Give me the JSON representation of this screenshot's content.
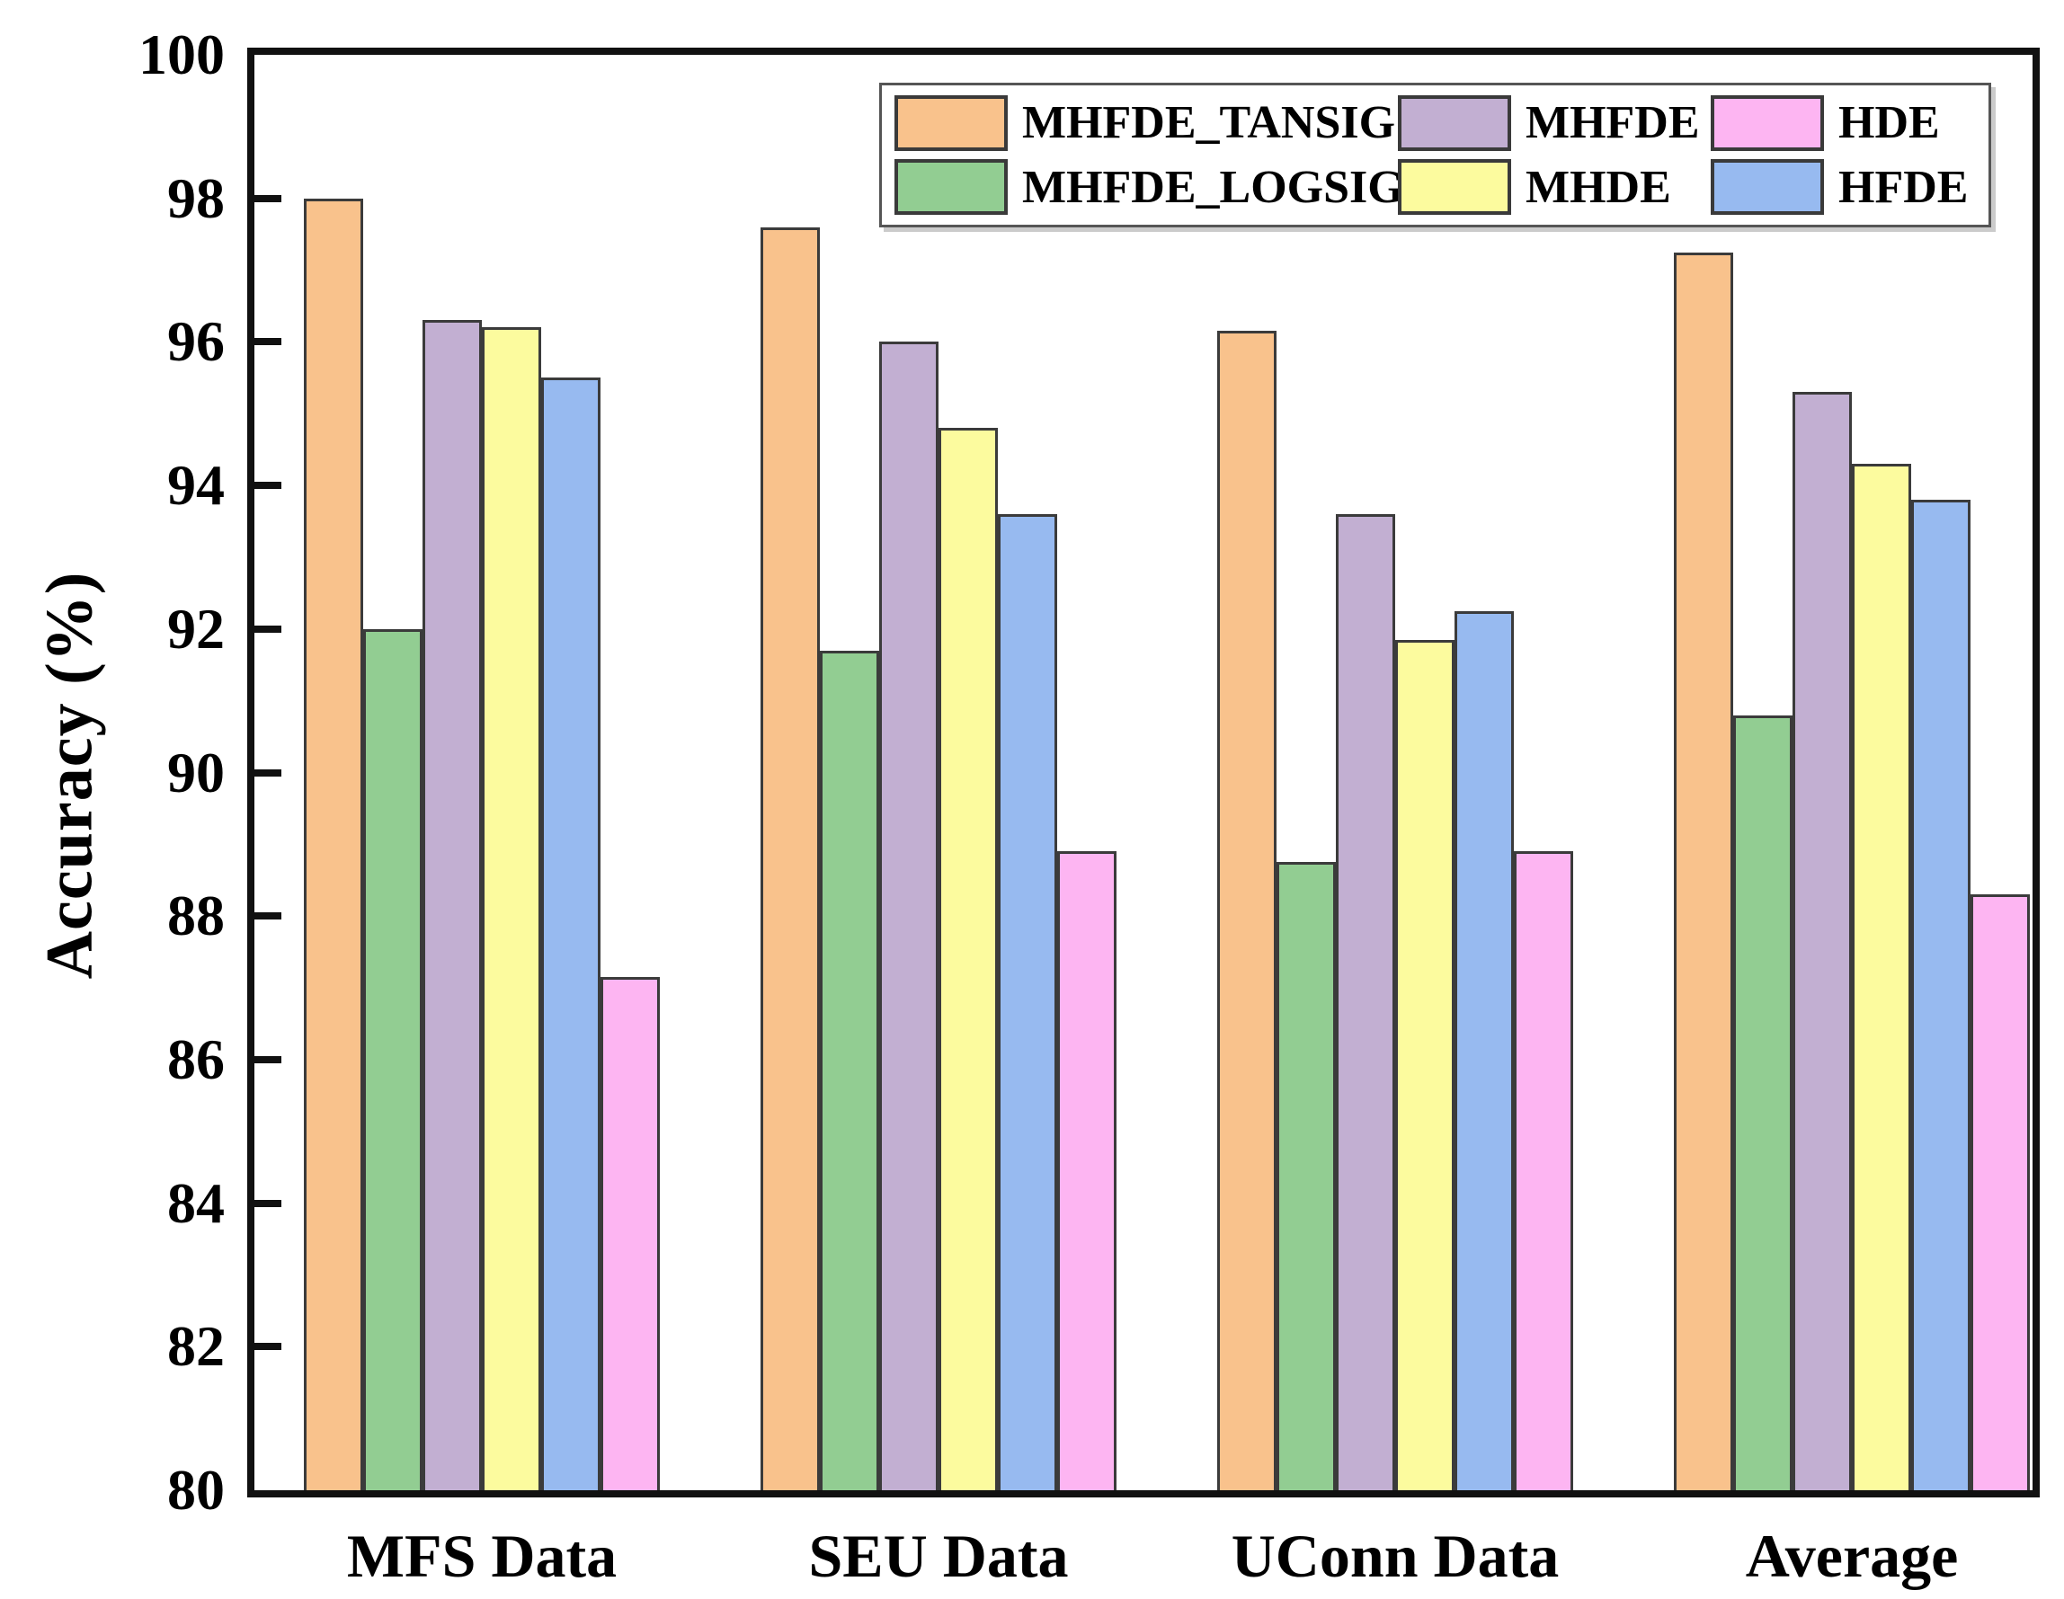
{
  "chart_data": {
    "type": "bar",
    "title": "",
    "xlabel": "",
    "ylabel": "Accuracy (%)",
    "ylim": [
      80,
      100
    ],
    "yticks": [
      80,
      82,
      84,
      86,
      88,
      90,
      92,
      94,
      96,
      98,
      100
    ],
    "grid": false,
    "legend_position": "top-right-inside",
    "categories": [
      "MFS Data",
      "SEU Data",
      "UConn Data",
      "Average"
    ],
    "series": [
      {
        "name": "MHFDE_TANSIG",
        "color": "#F9C28C",
        "values": [
          98.0,
          97.6,
          96.15,
          97.25
        ]
      },
      {
        "name": "MHFDE_LOGSIG",
        "color": "#92CD92",
        "values": [
          92.0,
          91.7,
          88.75,
          90.8
        ]
      },
      {
        "name": "MHFDE",
        "color": "#C2AFD2",
        "values": [
          96.3,
          96.0,
          93.6,
          95.3
        ]
      },
      {
        "name": "MHDE",
        "color": "#FCFB9E",
        "values": [
          96.2,
          94.8,
          91.85,
          94.3
        ]
      },
      {
        "name": "HFDE",
        "color": "#97BAF0",
        "values": [
          95.5,
          93.6,
          92.25,
          93.8
        ]
      },
      {
        "name": "HDE",
        "color": "#FDB5F2",
        "values": [
          87.15,
          88.9,
          88.9,
          88.3
        ]
      }
    ],
    "legend_rows": [
      [
        "MHFDE_TANSIG",
        "MHFDE",
        "HDE"
      ],
      [
        "MHFDE_LOGSIG",
        "MHDE",
        "HFDE"
      ]
    ],
    "axis_color": "#111111",
    "bar_border_color": "#3b3b3b"
  }
}
